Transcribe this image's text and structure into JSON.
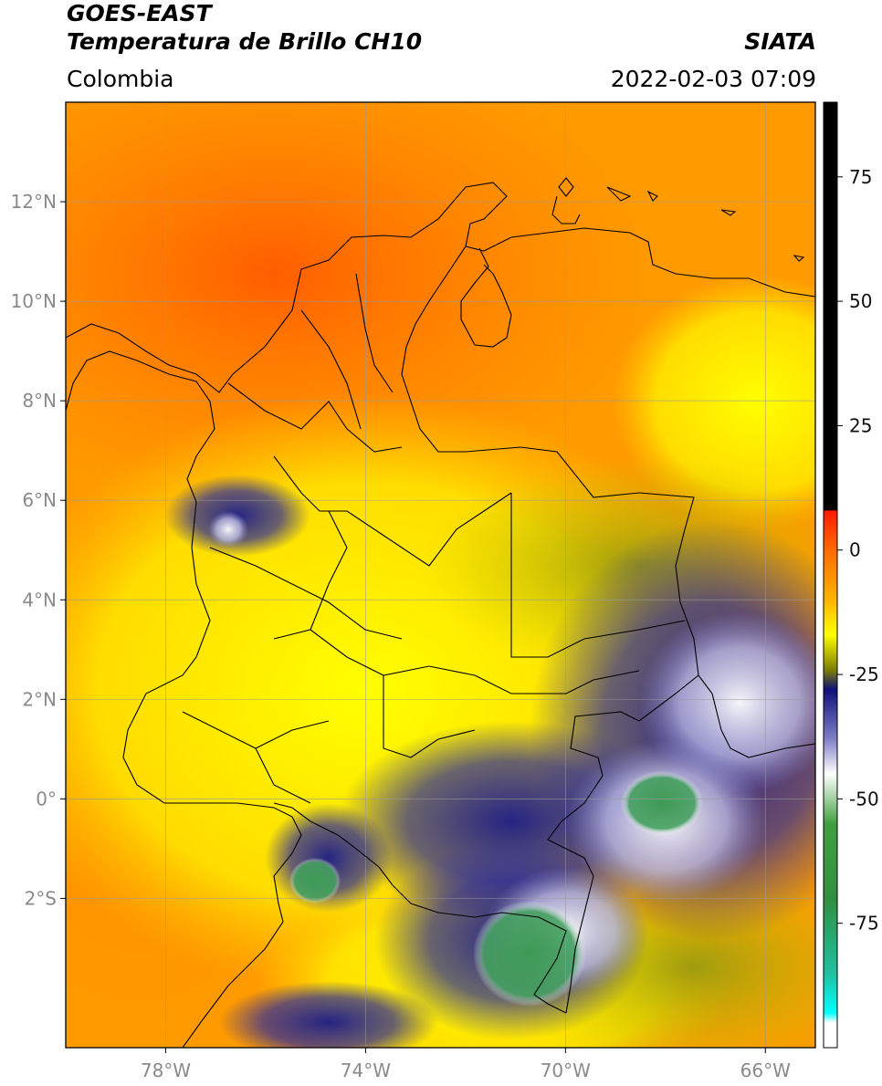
{
  "header": {
    "satellite": "GOES-EAST",
    "product": "Temperatura de Brillo CH10",
    "region": "Colombia",
    "credit": "SIATA",
    "datetime": "2022-02-03 07:09"
  },
  "map": {
    "lon_range": [
      -80,
      -65
    ],
    "lat_range": [
      -5,
      14
    ],
    "lat_ticks": [
      {
        "value": 12,
        "label": "12°N"
      },
      {
        "value": 10,
        "label": "10°N"
      },
      {
        "value": 8,
        "label": "8°N"
      },
      {
        "value": 6,
        "label": "6°N"
      },
      {
        "value": 4,
        "label": "4°N"
      },
      {
        "value": 2,
        "label": "2°N"
      },
      {
        "value": 0,
        "label": "0°"
      },
      {
        "value": -2,
        "label": "2°S"
      }
    ],
    "lon_ticks": [
      {
        "value": -78,
        "label": "78°W"
      },
      {
        "value": -74,
        "label": "74°W"
      },
      {
        "value": -70,
        "label": "70°W"
      },
      {
        "value": -66,
        "label": "66°W"
      }
    ],
    "grid": true
  },
  "colorbar": {
    "range": [
      -100,
      90
    ],
    "ticks": [
      {
        "value": 75,
        "label": "75"
      },
      {
        "value": 50,
        "label": "50"
      },
      {
        "value": 25,
        "label": "25"
      },
      {
        "value": 0,
        "label": "0"
      },
      {
        "value": -25,
        "label": "-25"
      },
      {
        "value": -50,
        "label": "-50"
      },
      {
        "value": -75,
        "label": "-75"
      }
    ],
    "stops": [
      {
        "value": 90,
        "color": "#000000"
      },
      {
        "value": 8,
        "color": "#000000"
      },
      {
        "value": 7.9,
        "color": "#ff1a00"
      },
      {
        "value": 0,
        "color": "#ff6a00"
      },
      {
        "value": -10,
        "color": "#ffb400"
      },
      {
        "value": -17,
        "color": "#ffff00"
      },
      {
        "value": -24,
        "color": "#808000"
      },
      {
        "value": -28,
        "color": "#10107a"
      },
      {
        "value": -38,
        "color": "#8080c8"
      },
      {
        "value": -45,
        "color": "#ffffff"
      },
      {
        "value": -55,
        "color": "#40a040"
      },
      {
        "value": -70,
        "color": "#309040"
      },
      {
        "value": -85,
        "color": "#20c0a0"
      },
      {
        "value": -93,
        "color": "#00ffff"
      },
      {
        "value": -95,
        "color": "#ffffff"
      },
      {
        "value": -100,
        "color": "#ffffff"
      }
    ]
  }
}
